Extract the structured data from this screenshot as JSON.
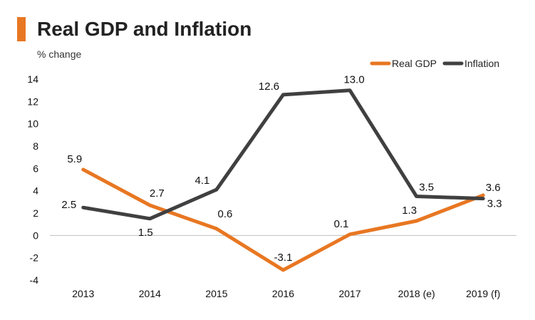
{
  "header": {
    "title": "Real GDP and Inflation",
    "unit_label": "% change"
  },
  "colors": {
    "title_bar": "#e87722",
    "real_gdp": "#e87722",
    "inflation": "#404040",
    "axis": "#bfbfbf"
  },
  "chart_data": {
    "type": "line",
    "title": "Real GDP and Inflation",
    "ylabel": "% change",
    "xlabel": "",
    "categories": [
      "2013",
      "2014",
      "2015",
      "2016",
      "2017",
      "2018 (e)",
      "2019 (f)"
    ],
    "ylim": [
      -4,
      14
    ],
    "yticks": [
      -4,
      -2,
      0,
      2,
      4,
      6,
      8,
      10,
      12,
      14
    ],
    "grid": false,
    "legend_position": "top-right",
    "series": [
      {
        "name": "Real GDP",
        "values": [
          5.9,
          2.7,
          0.6,
          -3.1,
          0.1,
          1.3,
          3.6
        ],
        "labels": [
          "5.9",
          "2.7",
          "0.6",
          "-3.1",
          "0.1",
          "1.3",
          "3.6"
        ]
      },
      {
        "name": "Inflation",
        "values": [
          2.5,
          1.5,
          4.1,
          12.6,
          13.0,
          3.5,
          3.3
        ],
        "labels": [
          "2.5",
          "1.5",
          "4.1",
          "12.6",
          "13.0",
          "3.5",
          "3.3"
        ]
      }
    ]
  }
}
